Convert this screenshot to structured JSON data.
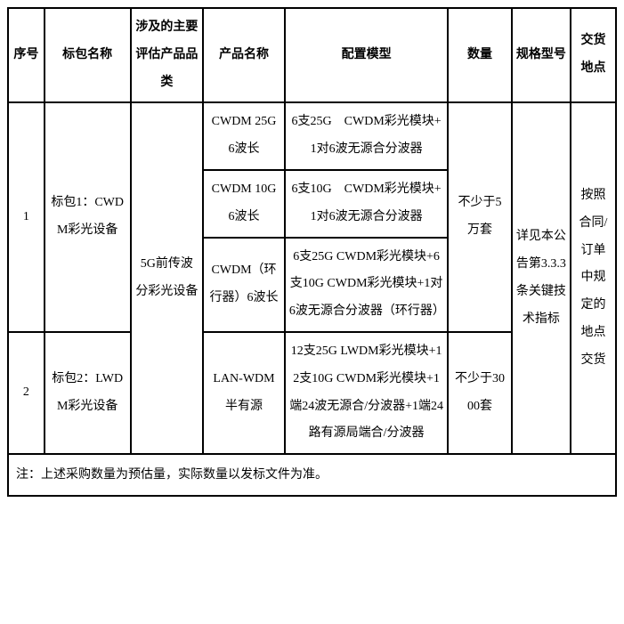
{
  "headers": {
    "seq": "序号",
    "pkg": "标包名称",
    "cat": "涉及的主要评估产品品类",
    "prod": "产品名称",
    "cfg": "配置模型",
    "qty": "数量",
    "spec": "规格型号",
    "loc": "交货地点"
  },
  "rows": {
    "r1": {
      "seq": "1",
      "pkg": "标包1：CWDM彩光设备",
      "qty": "不少于5万套"
    },
    "r2": {
      "seq": "2",
      "pkg": "标包2：LWDM彩光设备",
      "qty": "不少于3000套"
    },
    "shared": {
      "cat": "5G前传波分彩光设备",
      "spec": "详见本公告第3.3.3条关键技术指标",
      "loc": "按照合同/订单中规定的地点交货"
    },
    "products": {
      "p1": {
        "prod": "CWDM 25G 6波长",
        "cfg": "6支25G　CWDM彩光模块+1对6波无源合分波器"
      },
      "p2": {
        "prod": "CWDM 10G 6波长",
        "cfg": "6支10G　CWDM彩光模块+1对6波无源合分波器"
      },
      "p3": {
        "prod": "CWDM（环行器）6波长",
        "cfg": "6支25G CWDM彩光模块+6支10G CWDM彩光模块+1对6波无源合分波器（环行器）"
      },
      "p4": {
        "prod": "LAN-WDM半有源",
        "cfg": "12支25G LWDM彩光模块+12支10G CWDM彩光模块+1端24波无源合/分波器+1端24路有源局端合/分波器"
      }
    }
  },
  "note": "注：上述采购数量为预估量，实际数量以发标文件为准。",
  "style": {
    "border_color": "#000000",
    "background_color": "#ffffff",
    "text_color": "#000000",
    "font_family": "SimSun",
    "font_size": 14,
    "line_height": 2.2
  }
}
